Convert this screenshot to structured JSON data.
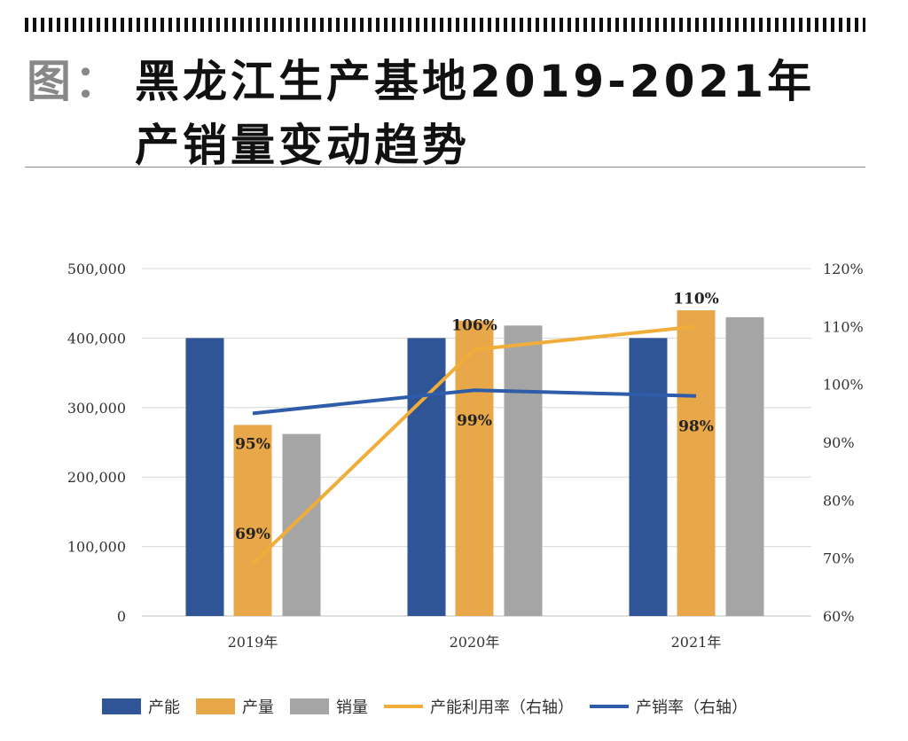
{
  "header": {
    "prefix": "图：",
    "title_line1": "黑龙江生产基地2019-2021年",
    "title_line2": "产销量变动趋势"
  },
  "chart_data": {
    "type": "bar",
    "title": "黑龙江生产基地2019-2021年产销量变动趋势",
    "categories": [
      "2019年",
      "2020年",
      "2021年"
    ],
    "series": [
      {
        "name": "产能",
        "type": "bar",
        "axis": "left",
        "color": "#2f5597",
        "values": [
          400000,
          400000,
          400000
        ]
      },
      {
        "name": "产量",
        "type": "bar",
        "axis": "left",
        "color": "#e8a84a",
        "values": [
          275000,
          425000,
          440000
        ]
      },
      {
        "name": "销量",
        "type": "bar",
        "axis": "left",
        "color": "#a5a5a5",
        "values": [
          262000,
          418000,
          430000
        ]
      },
      {
        "name": "产能利用率（右轴）",
        "type": "line",
        "axis": "right",
        "color": "#f0ad3a",
        "values": [
          69,
          106,
          110
        ],
        "labels": [
          "69%",
          "106%",
          "110%"
        ]
      },
      {
        "name": "产销率（右轴）",
        "type": "line",
        "axis": "right",
        "color": "#2f5ca8",
        "values": [
          95,
          99,
          98
        ],
        "labels": [
          "95%",
          "99%",
          "98%"
        ]
      }
    ],
    "y_left": {
      "range": [
        0,
        500000
      ],
      "ticks": [
        "0",
        "100,000",
        "200,000",
        "300,000",
        "400,000",
        "500,000"
      ]
    },
    "y_right": {
      "range": [
        60,
        120
      ],
      "ticks": [
        "60%",
        "70%",
        "80%",
        "90%",
        "100%",
        "110%",
        "120%"
      ]
    },
    "grid": true,
    "legend": "bottom"
  }
}
